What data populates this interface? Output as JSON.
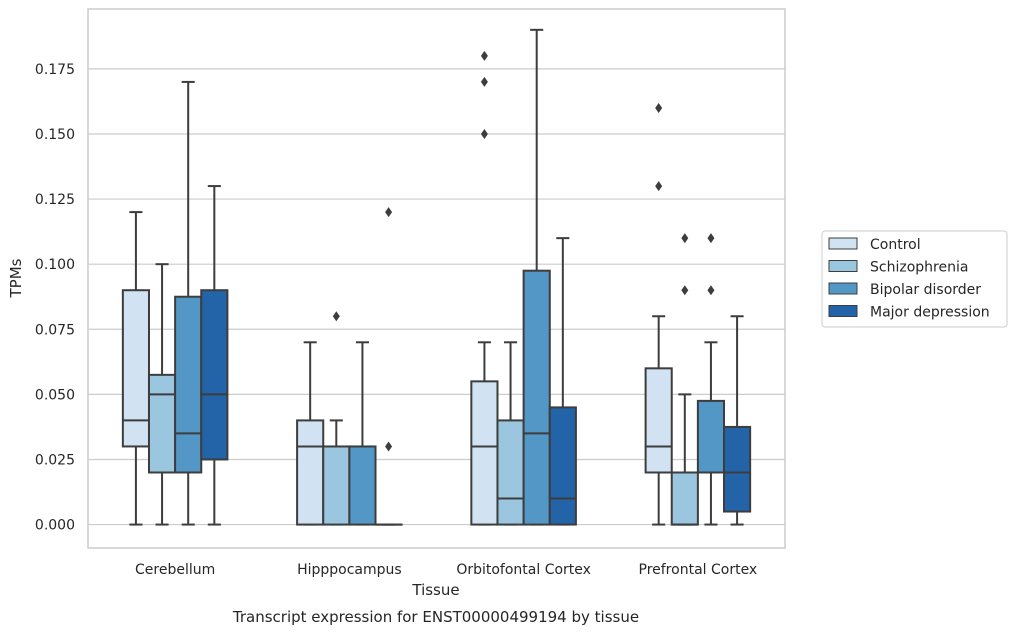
{
  "chart_data": {
    "type": "box",
    "title": "",
    "caption": "Transcript expression for ENST00000499194 by tissue",
    "xlabel": "Tissue",
    "ylabel": "TPMs",
    "ylim": [
      -0.009,
      0.198
    ],
    "yticks": [
      "0.000",
      "0.025",
      "0.050",
      "0.075",
      "0.100",
      "0.125",
      "0.150",
      "0.175"
    ],
    "grid": "horizontal",
    "legend_position": "right",
    "categories": [
      "Cerebellum",
      "Hipppocampus",
      "Orbitofontal Cortex",
      "Prefrontal Cortex"
    ],
    "series": [
      {
        "name": "Control",
        "color": "#d1e2f2",
        "boxes": [
          {
            "whislo": 0.0,
            "q1": 0.03,
            "med": 0.04,
            "q3": 0.09,
            "whishi": 0.12,
            "fliers": []
          },
          {
            "whislo": 0.0,
            "q1": 0.0,
            "med": 0.03,
            "q3": 0.04,
            "whishi": 0.07,
            "fliers": []
          },
          {
            "whislo": 0.0,
            "q1": 0.0,
            "med": 0.03,
            "q3": 0.055,
            "whishi": 0.07,
            "fliers": [
              0.15,
              0.17,
              0.18
            ]
          },
          {
            "whislo": 0.0,
            "q1": 0.02,
            "med": 0.03,
            "q3": 0.06,
            "whishi": 0.08,
            "fliers": [
              0.13,
              0.16
            ]
          }
        ]
      },
      {
        "name": "Schizophrenia",
        "color": "#9ac7df",
        "boxes": [
          {
            "whislo": 0.0,
            "q1": 0.02,
            "med": 0.05,
            "q3": 0.0575,
            "whishi": 0.1,
            "fliers": []
          },
          {
            "whislo": 0.0,
            "q1": 0.0,
            "med": 0.03,
            "q3": 0.03,
            "whishi": 0.04,
            "fliers": [
              0.08
            ]
          },
          {
            "whislo": 0.0,
            "q1": 0.0,
            "med": 0.01,
            "q3": 0.04,
            "whishi": 0.07,
            "fliers": []
          },
          {
            "whislo": 0.0,
            "q1": 0.0,
            "med": 0.0,
            "q3": 0.02,
            "whishi": 0.05,
            "fliers": [
              0.09,
              0.11
            ]
          }
        ]
      },
      {
        "name": "Bipolar disorder",
        "color": "#5397c6",
        "boxes": [
          {
            "whislo": 0.0,
            "q1": 0.02,
            "med": 0.035,
            "q3": 0.0875,
            "whishi": 0.17,
            "fliers": []
          },
          {
            "whislo": 0.0,
            "q1": 0.0,
            "med": 0.03,
            "q3": 0.03,
            "whishi": 0.07,
            "fliers": []
          },
          {
            "whislo": 0.0,
            "q1": 0.0,
            "med": 0.035,
            "q3": 0.0975,
            "whishi": 0.19,
            "fliers": []
          },
          {
            "whislo": 0.0,
            "q1": 0.02,
            "med": 0.02,
            "q3": 0.0475,
            "whishi": 0.07,
            "fliers": [
              0.09,
              0.11
            ]
          }
        ]
      },
      {
        "name": "Major depression",
        "color": "#2364a8",
        "boxes": [
          {
            "whislo": 0.0,
            "q1": 0.025,
            "med": 0.05,
            "q3": 0.09,
            "whishi": 0.13,
            "fliers": []
          },
          {
            "whislo": 0.0,
            "q1": 0.0,
            "med": 0.0,
            "q3": 0.0,
            "whishi": 0.0,
            "fliers": [
              0.03,
              0.12
            ]
          },
          {
            "whislo": 0.0,
            "q1": 0.0,
            "med": 0.01,
            "q3": 0.045,
            "whishi": 0.11,
            "fliers": []
          },
          {
            "whislo": 0.0,
            "q1": 0.005,
            "med": 0.02,
            "q3": 0.0375,
            "whishi": 0.08,
            "fliers": []
          }
        ]
      }
    ]
  },
  "colors": {
    "line": "#3d3d3d",
    "grid": "#cccccc",
    "frame": "#cccccc",
    "text": "#262626"
  }
}
